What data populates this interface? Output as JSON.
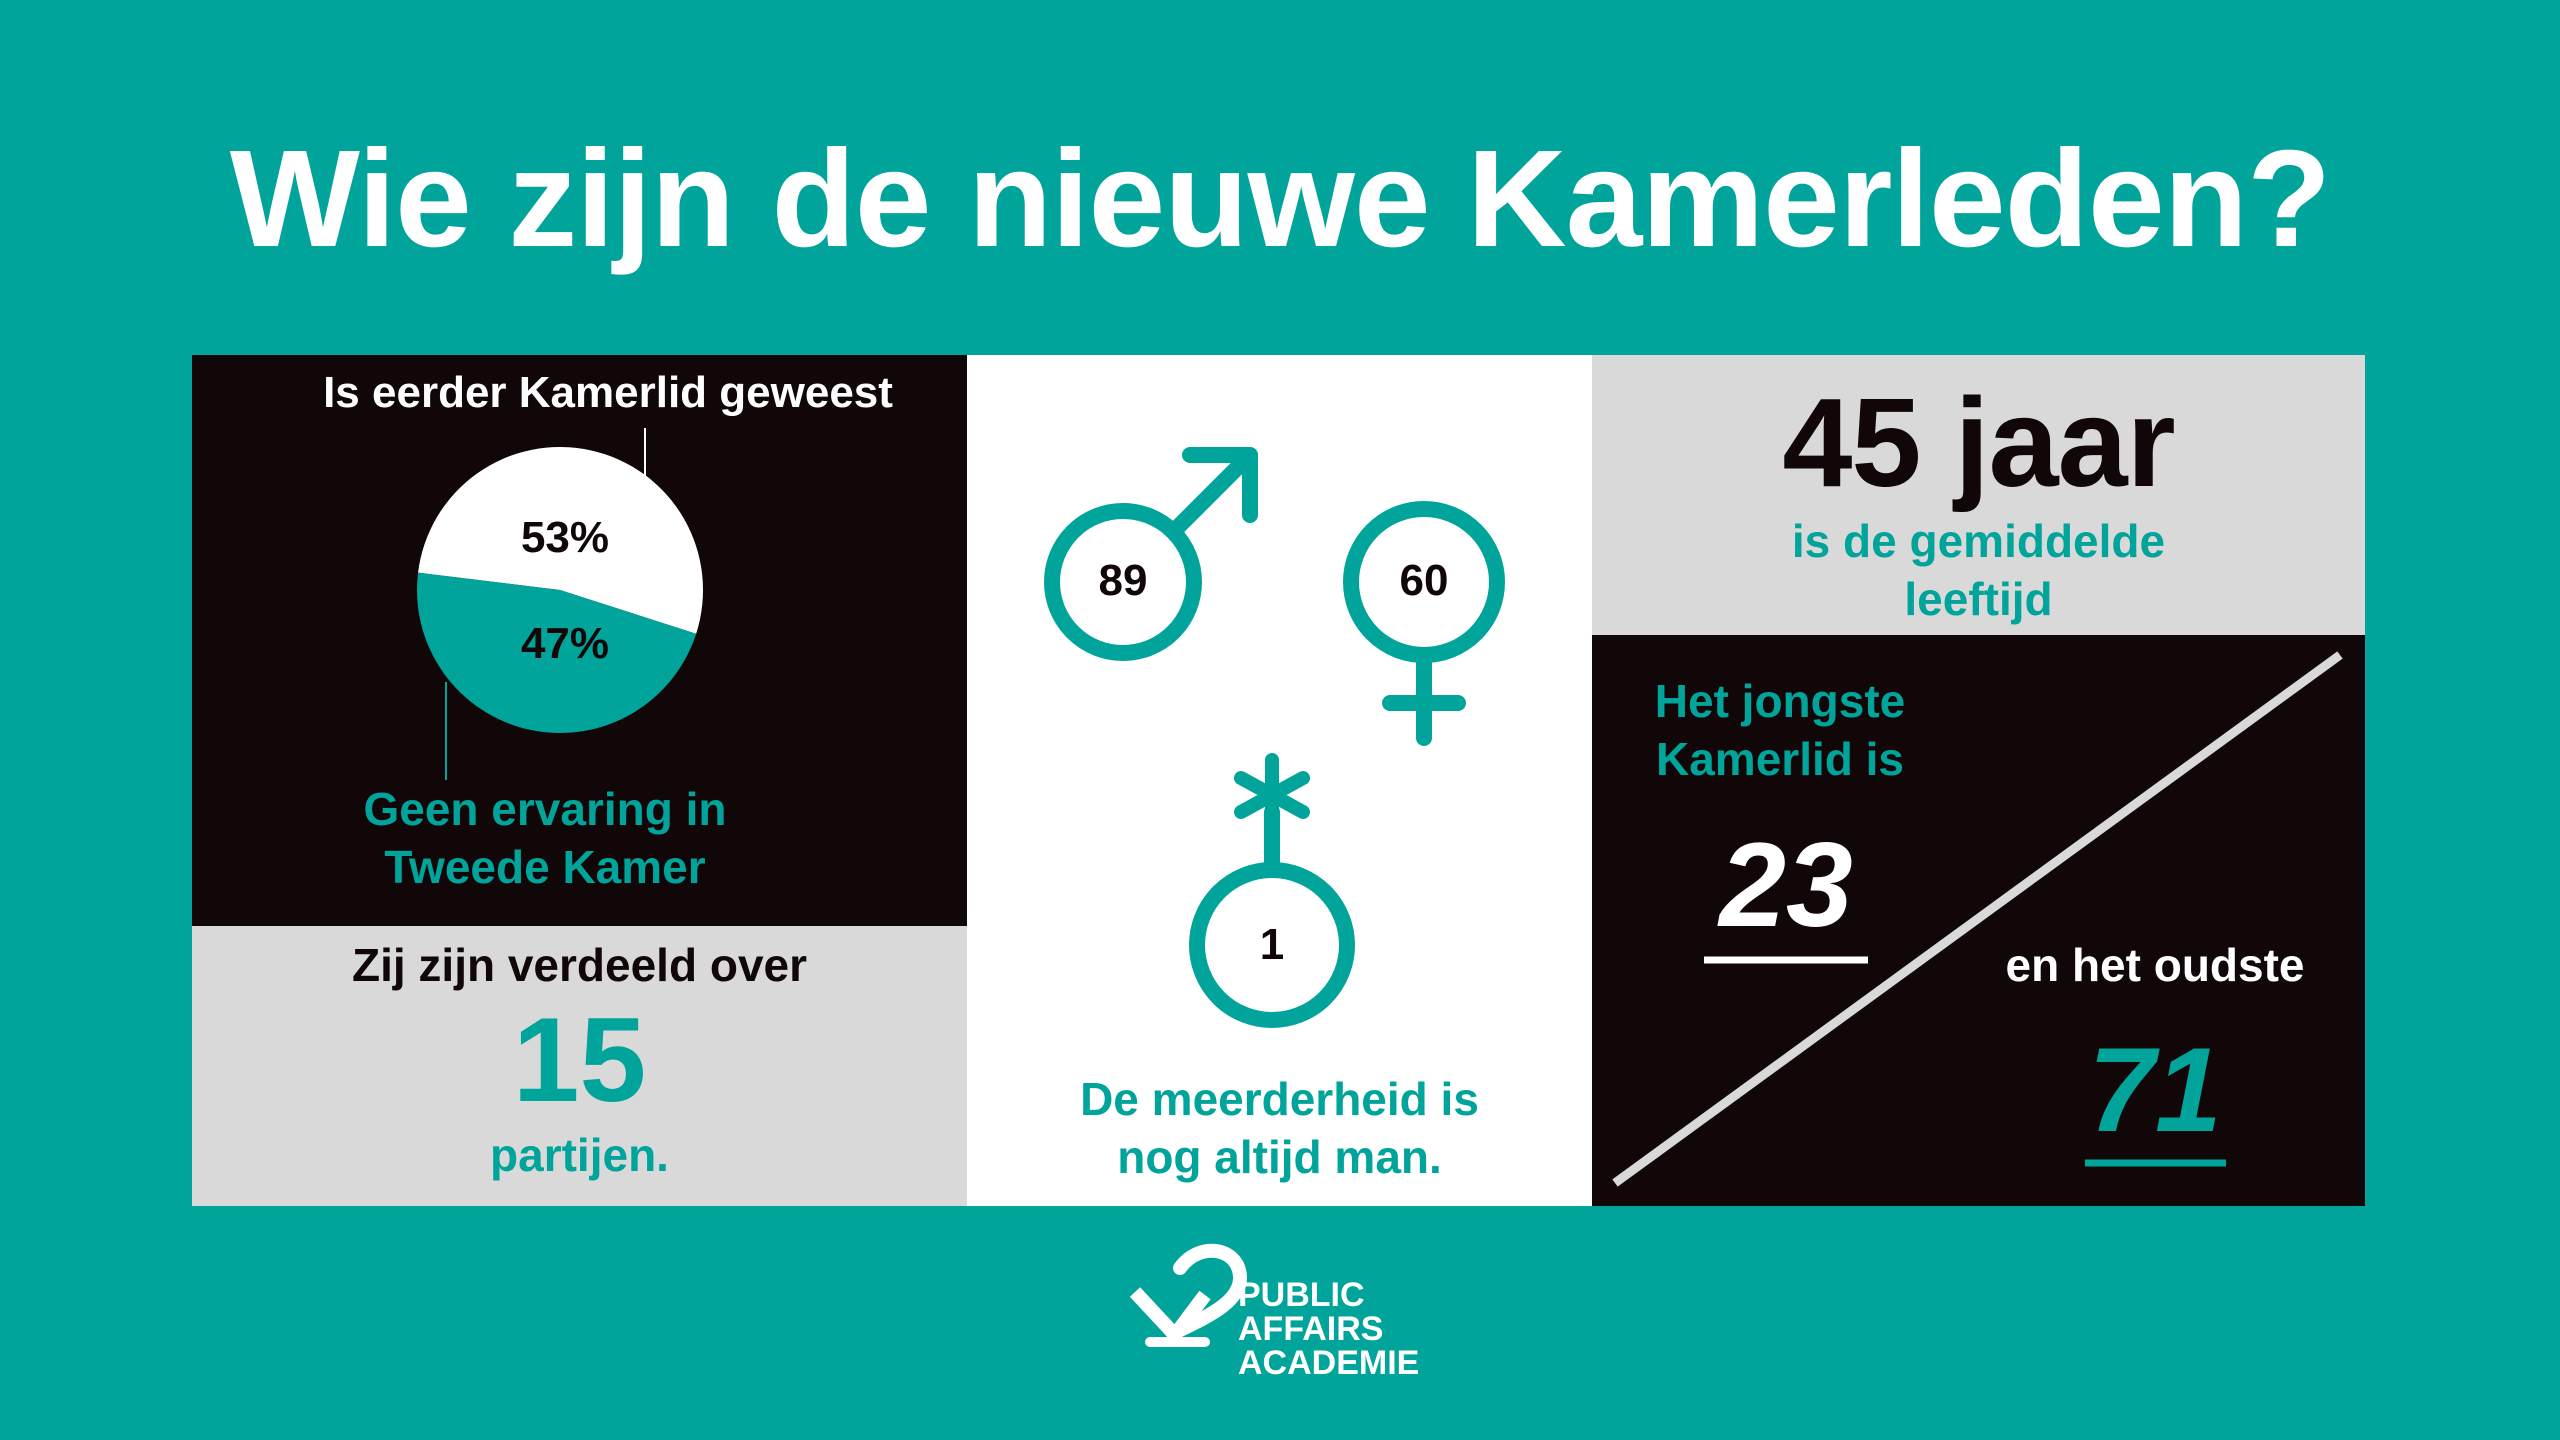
{
  "title": "Wie zijn de nieuwe Kamerleden?",
  "experience": {
    "label_top": "Is eerder Kamerlid geweest",
    "label_bottom_line1": "Geen ervaring in",
    "label_bottom_line2": "Tweede Kamer",
    "chart_data": {
      "type": "pie",
      "categories": [
        "Is eerder Kamerlid geweest",
        "Geen ervaring in Tweede Kamer"
      ],
      "values": [
        53,
        47
      ],
      "labels": [
        "53%",
        "47%"
      ],
      "colors": [
        "#ffffff",
        "#00a49a"
      ]
    }
  },
  "parties": {
    "line1": "Zij zijn verdeeld over",
    "number": "15",
    "line3": "partijen."
  },
  "gender": {
    "male_count": "89",
    "female_count": "60",
    "other_count": "1",
    "caption_line1": "De  meerderheid is",
    "caption_line2": "nog altijd man.",
    "icons": [
      "male-symbol-icon",
      "female-symbol-icon",
      "nonbinary-symbol-icon"
    ],
    "color": "#00a49a"
  },
  "age": {
    "average": "45 jaar",
    "average_line1": "is  de gemiddelde",
    "average_line2": "leeftijd",
    "youngest_line1": "Het jongste",
    "youngest_line2": "Kamerlid is",
    "youngest": "23",
    "oldest_label": "en het oudste",
    "oldest": "71"
  },
  "logo": {
    "line1": "PUBLIC",
    "line2": "AFFAIRS",
    "line3": "ACADEMIE"
  },
  "colors": {
    "background": "#00a49a",
    "dark": "#120708",
    "grey": "#d9d9d9",
    "accent": "#00a49a"
  }
}
